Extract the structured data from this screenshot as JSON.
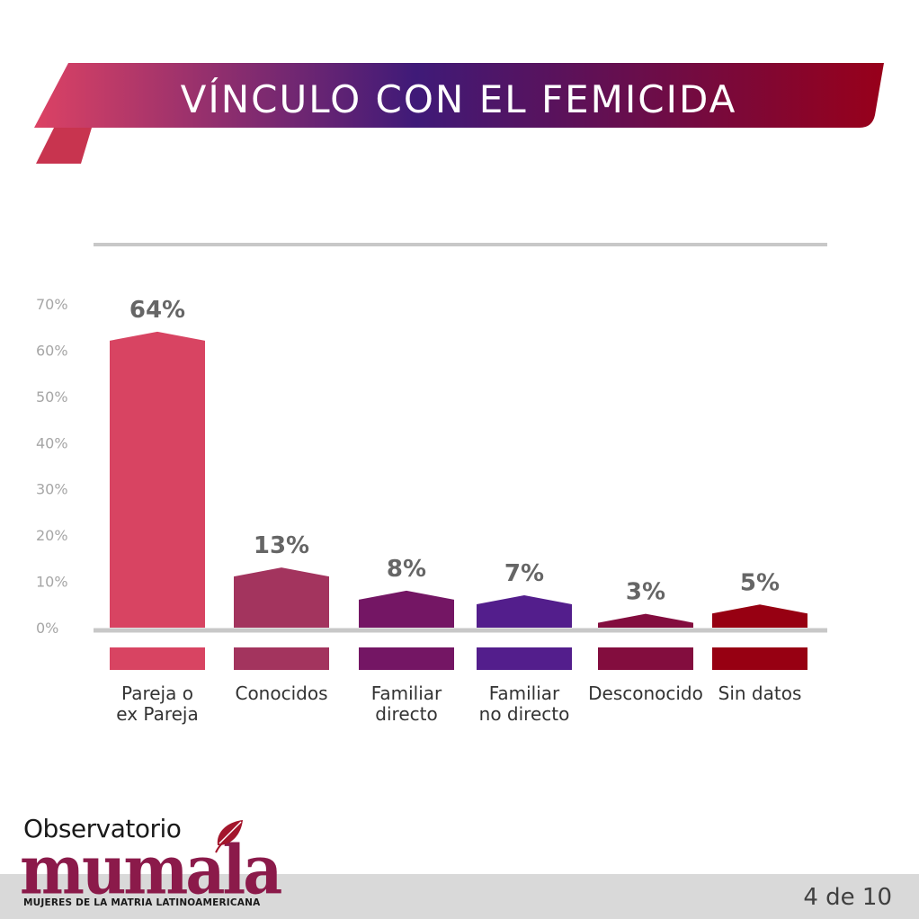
{
  "title": "VÍNCULO CON EL FEMICIDA",
  "colors": {
    "banner_gradient": [
      "#dc4264",
      "#3f1a78",
      "#98001a"
    ],
    "axis_line": "#c8c8c8",
    "logo": "#8b1a4a",
    "footer_bar": "#d9d9d9"
  },
  "chart_data": {
    "type": "bar",
    "categories": [
      [
        "Pareja o",
        "ex Pareja"
      ],
      [
        "Conocidos"
      ],
      [
        "Familiar",
        "directo"
      ],
      [
        "Familiar",
        "no directo"
      ],
      [
        "Desconocido"
      ],
      [
        "Sin datos"
      ]
    ],
    "values": [
      64,
      13,
      8,
      7,
      3,
      5
    ],
    "value_labels": [
      "64%",
      "13%",
      "8%",
      "7%",
      "3%",
      "5%"
    ],
    "bar_colors": [
      "#d84462",
      "#a3345e",
      "#741664",
      "#531e8c",
      "#830d3e",
      "#970012"
    ],
    "yticks": [
      "0%",
      "10%",
      "20%",
      "30%",
      "40%",
      "50%",
      "60%",
      "70%"
    ],
    "ylim": [
      0,
      70
    ],
    "grid": false
  },
  "logo": {
    "top_text": "Observatorio",
    "main_text": "mumala",
    "sub_text": "MUJERES DE LA MATRIA LATINOAMERICANA",
    "icon": "leaf-icon"
  },
  "page_number": "4 de 10"
}
